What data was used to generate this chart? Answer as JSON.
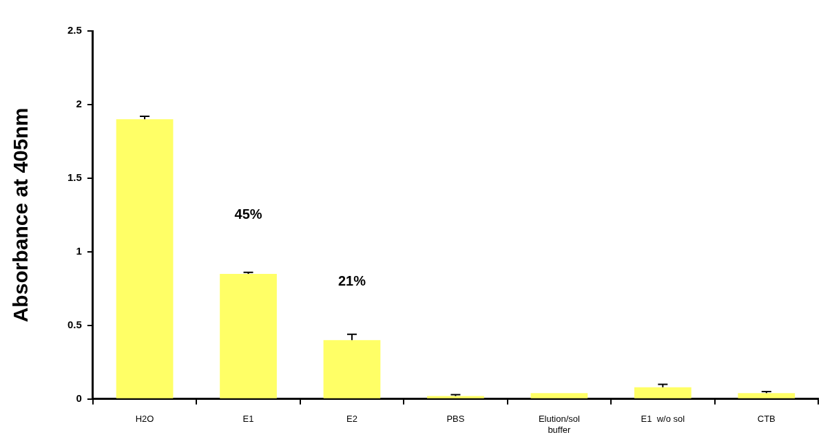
{
  "chart_data": {
    "type": "bar",
    "ylabel": "Absorbance at 405nm",
    "categories": [
      "H2O",
      "E1",
      "E2",
      "PBS",
      "Elution/sol buffer",
      "E1  w/o sol",
      "CTB"
    ],
    "values": [
      1.9,
      0.85,
      0.4,
      0.02,
      0.04,
      0.08,
      0.04
    ],
    "errors": [
      [
        1.9,
        1.92
      ],
      [
        0.85,
        0.86
      ],
      [
        0.4,
        0.44
      ],
      [
        0.02,
        0.03
      ],
      null,
      [
        0.08,
        0.1
      ],
      [
        0.04,
        0.05
      ]
    ],
    "color": "#ffff66",
    "ylim": [
      0,
      2.5
    ],
    "yticks": [
      0,
      0.5,
      1,
      1.5,
      2,
      2.5
    ],
    "grid": false,
    "legend": false,
    "annotations": [
      "45%",
      "21%"
    ]
  }
}
